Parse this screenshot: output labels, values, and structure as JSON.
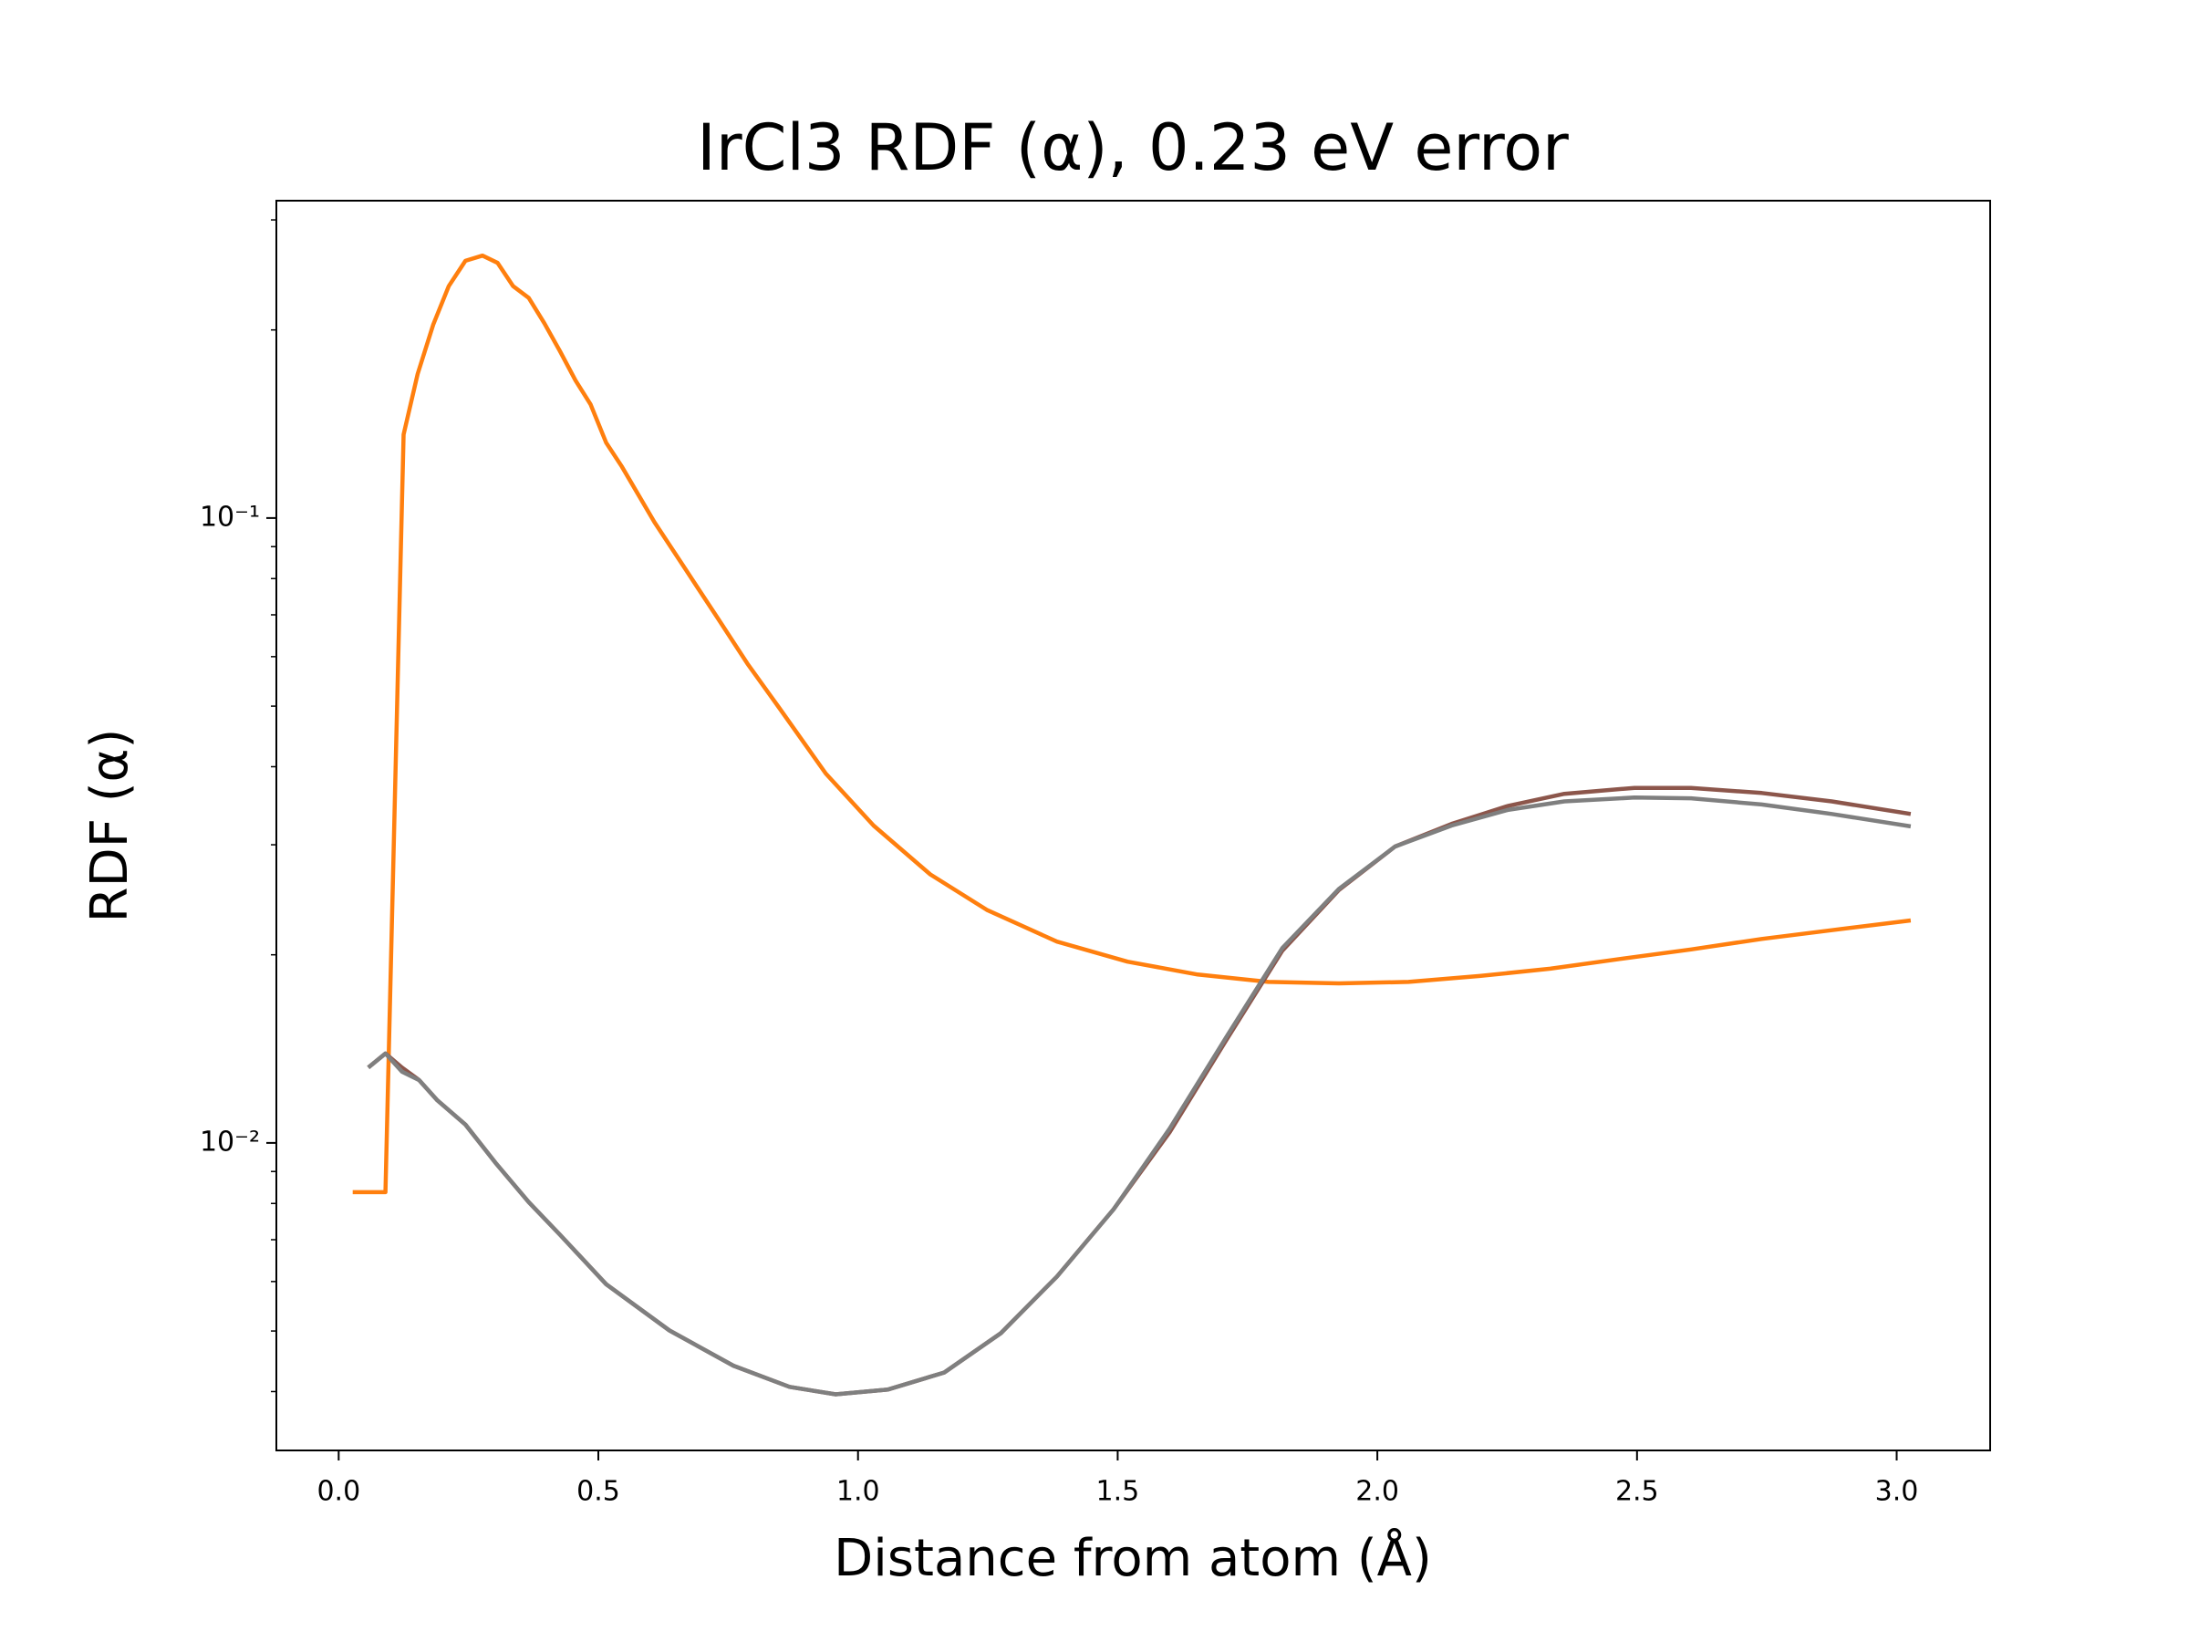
{
  "chart_data": {
    "type": "line",
    "title": "IrCl3 RDF (α), 0.23 eV error",
    "x_label": "Distance from atom (Å)",
    "y_label": "RDF (α)",
    "xlim": [
      -0.12,
      3.18
    ],
    "ylim": [
      0.00322,
      0.322
    ],
    "log_y": true,
    "xticks": [
      {
        "value": 0,
        "label": "0.0"
      },
      0.5,
      {
        "value": 1,
        "label": "1.0"
      },
      1.5,
      {
        "value": 2,
        "label": "2.0"
      },
      2.5,
      {
        "value": 3,
        "label": "3.0"
      }
    ],
    "yticks": [
      {
        "value": 0.01,
        "label": "10⁻²"
      },
      {
        "value": 0.1,
        "label": "10⁻¹"
      }
    ],
    "yminorticks": [
      0.004,
      0.005,
      0.006,
      0.007,
      0.008,
      0.009,
      0.02,
      0.03,
      0.04,
      0.05,
      0.06,
      0.07,
      0.08,
      0.09,
      0.2,
      0.3
    ],
    "series": [
      {
        "color": "#ff7f0e",
        "x": [
          0.027,
          0.09,
          0.125,
          0.152,
          0.182,
          0.212,
          0.244,
          0.277,
          0.306,
          0.336,
          0.366,
          0.396,
          0.426,
          0.456,
          0.485,
          0.515,
          0.545,
          0.608,
          0.667,
          0.73,
          0.787,
          0.849,
          0.938,
          1.03,
          1.139,
          1.248,
          1.383,
          1.519,
          1.654,
          1.79,
          1.926,
          2.06,
          2.197,
          2.333,
          2.468,
          2.604,
          2.74,
          2.875,
          3.027
        ],
        "values": [
          0.00834,
          0.00834,
          0.136,
          0.17,
          0.204,
          0.235,
          0.258,
          0.263,
          0.256,
          0.235,
          0.225,
          0.205,
          0.185,
          0.166,
          0.152,
          0.132,
          0.121,
          0.0985,
          0.083,
          0.0691,
          0.0585,
          0.0496,
          0.039,
          0.0322,
          0.0269,
          0.0236,
          0.021,
          0.0195,
          0.0186,
          0.0181,
          0.018,
          0.0181,
          0.0185,
          0.019,
          0.0197,
          0.0204,
          0.0212,
          0.0219,
          0.0227
        ]
      },
      {
        "color": "#8c564b",
        "x": [
          0.057,
          0.09,
          0.122,
          0.155,
          0.19,
          0.244,
          0.304,
          0.366,
          0.426,
          0.515,
          0.637,
          0.76,
          0.868,
          0.957,
          1.058,
          1.166,
          1.275,
          1.383,
          1.492,
          1.6,
          1.709,
          1.817,
          1.926,
          2.034,
          2.143,
          2.251,
          2.36,
          2.495,
          2.604,
          2.74,
          2.875,
          3.027
        ],
        "values": [
          0.0132,
          0.0139,
          0.0132,
          0.0126,
          0.0117,
          0.0107,
          0.00925,
          0.00804,
          0.00713,
          0.00594,
          0.00501,
          0.0044,
          0.00407,
          0.00396,
          0.00403,
          0.00429,
          0.00496,
          0.00611,
          0.00783,
          0.0104,
          0.0146,
          0.0203,
          0.0254,
          0.0298,
          0.0324,
          0.0346,
          0.0362,
          0.037,
          0.037,
          0.0363,
          0.0352,
          0.0336
        ]
      },
      {
        "color": "#7f7f7f",
        "x": [
          0.057,
          0.09,
          0.122,
          0.155,
          0.19,
          0.244,
          0.304,
          0.366,
          0.426,
          0.515,
          0.637,
          0.76,
          0.868,
          0.957,
          1.058,
          1.166,
          1.275,
          1.383,
          1.492,
          1.6,
          1.709,
          1.817,
          1.926,
          2.034,
          2.143,
          2.251,
          2.36,
          2.495,
          2.604,
          2.74,
          2.875,
          3.027
        ],
        "values": [
          0.0132,
          0.0139,
          0.013,
          0.0126,
          0.0117,
          0.0107,
          0.00925,
          0.00804,
          0.00713,
          0.00594,
          0.00501,
          0.0044,
          0.00407,
          0.00396,
          0.00403,
          0.00429,
          0.00496,
          0.00611,
          0.00783,
          0.01054,
          0.01476,
          0.0205,
          0.0255,
          0.0298,
          0.0322,
          0.0341,
          0.0352,
          0.0357,
          0.0356,
          0.0348,
          0.0336,
          0.0321
        ]
      }
    ]
  }
}
